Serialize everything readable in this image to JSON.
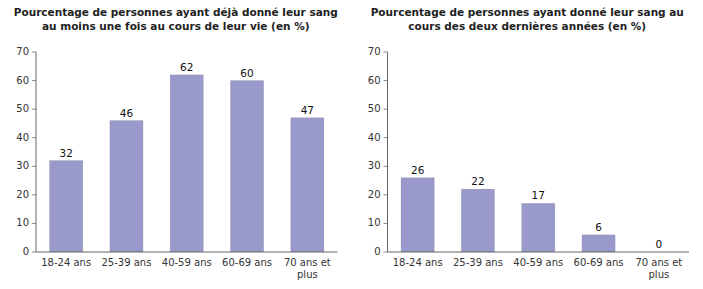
{
  "chart_data": [
    {
      "type": "bar",
      "title": "Pourcentage de personnes ayant déjà donné leur sang\nau moins une fois au cours de leur vie (en %)",
      "categories": [
        "18-24 ans",
        "25-39 ans",
        "40-59 ans",
        "60-69 ans",
        "70 ans et\nplus"
      ],
      "values": [
        32,
        46,
        62,
        60,
        47
      ],
      "color": "#9999cc",
      "ylim": [
        0,
        70
      ],
      "yticks": [
        0,
        10,
        20,
        30,
        40,
        50,
        60,
        70
      ],
      "grid": false,
      "data_labels": true
    },
    {
      "type": "bar",
      "title": "Pourcentage de personnes ayant donné leur sang au\ncours des deux dernières années (en %)",
      "categories": [
        "18-24 ans",
        "25-39 ans",
        "40-59 ans",
        "60-69 ans",
        "70 ans et\nplus"
      ],
      "values": [
        26,
        22,
        17,
        6,
        0
      ],
      "color": "#9999cc",
      "ylim": [
        0,
        70
      ],
      "yticks": [
        0,
        10,
        20,
        30,
        40,
        50,
        60,
        70
      ],
      "grid": false,
      "data_labels": true
    }
  ]
}
